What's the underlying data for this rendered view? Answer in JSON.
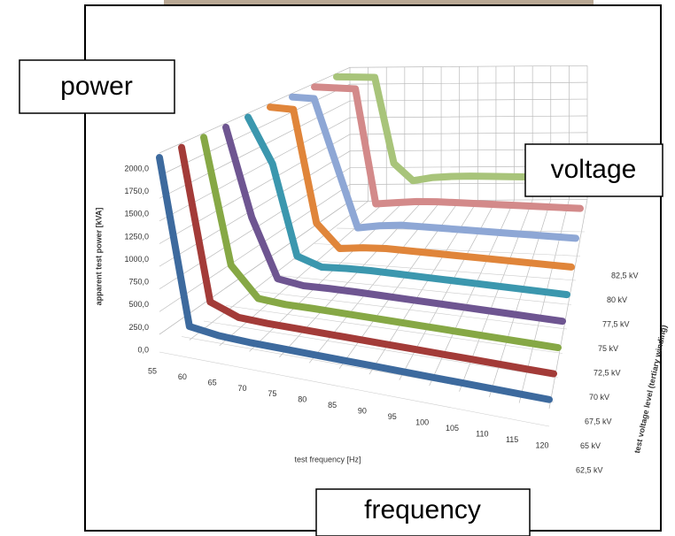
{
  "chart_data": {
    "type": "line3d",
    "y_label": "apparent test power [kVA]",
    "x_label": "test frequency [Hz]",
    "z_label": "test voltage level (tertiary winding)",
    "x": [
      55,
      60,
      65,
      70,
      75,
      80,
      85,
      90,
      95,
      100,
      105,
      110,
      115,
      120
    ],
    "xlim": [
      55,
      120
    ],
    "xticks": [
      55,
      60,
      65,
      70,
      75,
      80,
      85,
      90,
      95,
      100,
      105,
      110,
      115,
      120
    ],
    "ylim": [
      0,
      2000
    ],
    "yticks": [
      {
        "value": 0,
        "label": "0,0"
      },
      {
        "value": 250,
        "label": "250,0"
      },
      {
        "value": 500,
        "label": "500,0"
      },
      {
        "value": 750,
        "label": "750,0"
      },
      {
        "value": 1000,
        "label": "1000,0"
      },
      {
        "value": 1250,
        "label": "1250,0"
      },
      {
        "value": 1500,
        "label": "1500,0"
      },
      {
        "value": 1750,
        "label": "1750,0"
      },
      {
        "value": 2000,
        "label": "2000,0"
      }
    ],
    "grid": true,
    "series": [
      {
        "name": "62,5 kV",
        "color": "#3d6a9e",
        "values": [
          1950,
          150,
          110,
          100,
          100,
          100,
          100,
          100,
          100,
          100,
          100,
          100,
          100,
          100
        ]
      },
      {
        "name": "65 kV",
        "color": "#a33b38",
        "values": [
          1950,
          250,
          130,
          120,
          120,
          120,
          120,
          120,
          120,
          120,
          120,
          120,
          120,
          120
        ]
      },
      {
        "name": "67,5 kV",
        "color": "#86a845",
        "values": [
          1950,
          500,
          160,
          140,
          145,
          145,
          145,
          145,
          145,
          145,
          145,
          145,
          145,
          145
        ]
      },
      {
        "name": "70 kV",
        "color": "#6e5591",
        "values": [
          1950,
          900,
          200,
          160,
          170,
          175,
          175,
          175,
          175,
          175,
          175,
          175,
          175,
          175
        ]
      },
      {
        "name": "72,5 kV",
        "color": "#3b97ae",
        "values": [
          1950,
          1400,
          280,
          180,
          200,
          210,
          210,
          210,
          210,
          210,
          210,
          210,
          210,
          210
        ]
      },
      {
        "name": "75 kV",
        "color": "#e0853a",
        "values": [
          1950,
          1950,
          500,
          200,
          240,
          260,
          260,
          260,
          260,
          260,
          260,
          260,
          260,
          260
        ]
      },
      {
        "name": "77,5 kV",
        "color": "#8ea7d5",
        "values": [
          1950,
          1950,
          1100,
          250,
          300,
          330,
          330,
          330,
          330,
          330,
          330,
          330,
          330,
          330
        ]
      },
      {
        "name": "80 kV",
        "color": "#d38a8a",
        "values": [
          1950,
          1950,
          1950,
          350,
          380,
          410,
          420,
          420,
          420,
          420,
          420,
          420,
          420,
          420
        ]
      },
      {
        "name": "82,5 kV",
        "color": "#a8c47a",
        "values": [
          1950,
          1950,
          1950,
          700,
          450,
          500,
          520,
          530,
          530,
          530,
          530,
          530,
          530,
          530
        ]
      }
    ]
  },
  "labels": {
    "power": "power",
    "voltage": "voltage",
    "frequency": "frequency"
  }
}
